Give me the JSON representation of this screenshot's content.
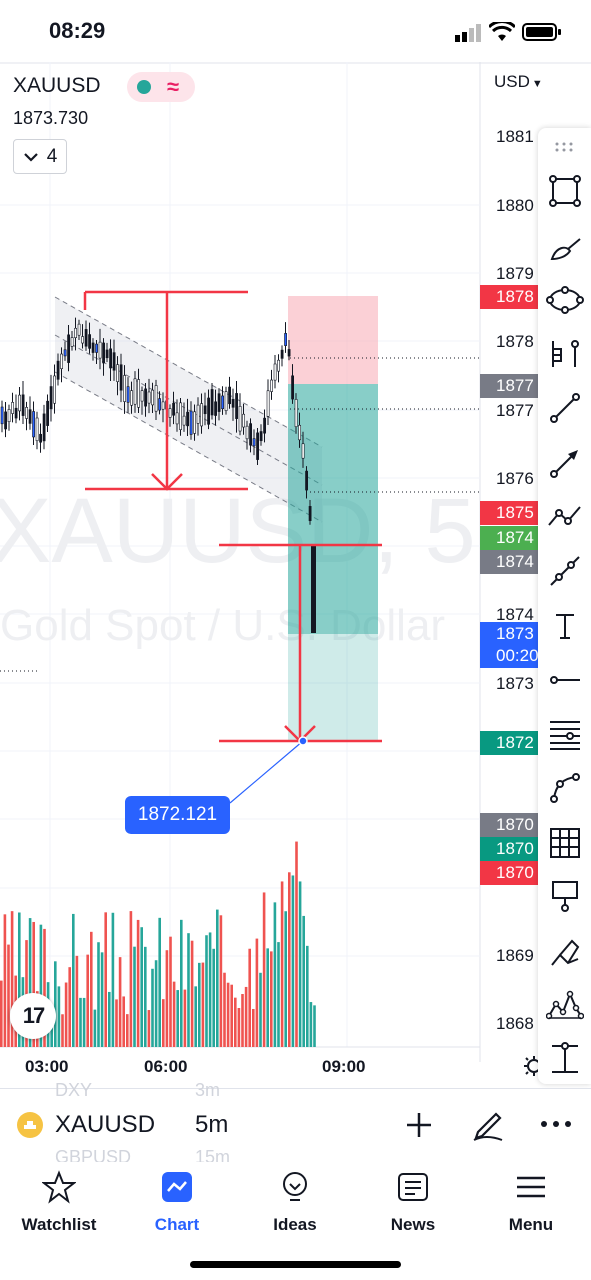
{
  "status_bar": {
    "time": "08:29"
  },
  "chart": {
    "symbol": "XAUUSD",
    "price": "1873.730",
    "collapse_count": "4",
    "currency": "USD",
    "watermark_symbol": "XAUUSD, 5",
    "watermark_desc": "Gold Spot / U.S. Dollar",
    "price_axis_labels": [
      "1881",
      "1880",
      "1879",
      "1878",
      "1877",
      "1876",
      "1874",
      "1873",
      "1869",
      "1868"
    ],
    "price_tags": [
      {
        "text": "1878",
        "color": "#f23645"
      },
      {
        "text": "1877",
        "color": "#787b86"
      },
      {
        "text": "1875",
        "color": "#f23645"
      },
      {
        "text": "1874",
        "color": "#4caf50"
      },
      {
        "text": "1874",
        "color": "#787b86"
      },
      {
        "text": "1873",
        "color": "#2962ff"
      },
      {
        "text": "00:20",
        "color": "#2962ff"
      },
      {
        "text": "1872",
        "color": "#089981"
      },
      {
        "text": "1870",
        "color": "#787b86"
      },
      {
        "text": "1870",
        "color": "#089981"
      },
      {
        "text": "1870",
        "color": "#f23645"
      }
    ],
    "time_labels": [
      "03:00",
      "06:00",
      "09:00"
    ],
    "callout_price": "1872.121",
    "logo_text": "17"
  },
  "bottom_bar": {
    "symbol": "XAUUSD",
    "interval": "5m",
    "ghost_above_symbol": "DXY",
    "ghost_above_interval": "3m",
    "ghost_below_symbol": "GBPUSD",
    "ghost_below_interval": "15m"
  },
  "tabs": [
    {
      "label": "Watchlist",
      "icon": "star-icon",
      "active": false
    },
    {
      "label": "Chart",
      "icon": "chart-icon",
      "active": true
    },
    {
      "label": "Ideas",
      "icon": "lightbulb-icon",
      "active": false
    },
    {
      "label": "News",
      "icon": "newspaper-icon",
      "active": false
    },
    {
      "label": "Menu",
      "icon": "hamburger-icon",
      "active": false
    }
  ],
  "colors": {
    "up": "#26a69a",
    "down": "#ef5350",
    "accent": "#2962ff",
    "drawing_red": "#f23645"
  }
}
